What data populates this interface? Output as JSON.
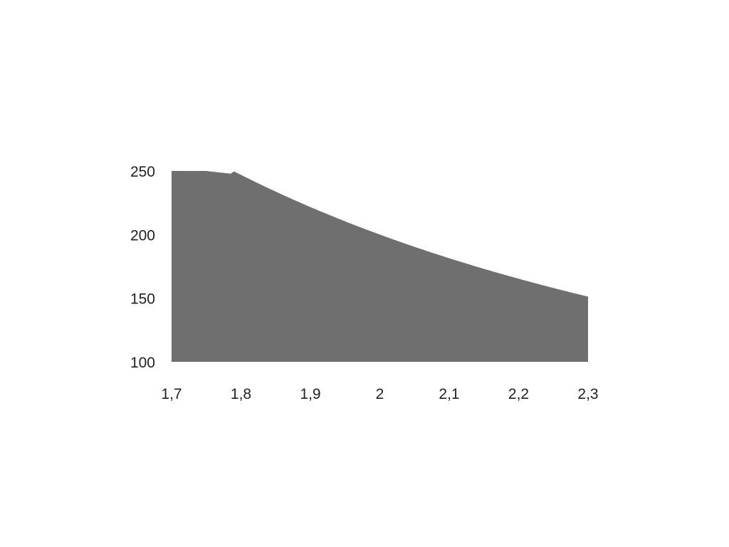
{
  "chart_data": {
    "type": "area",
    "title": "",
    "xlabel": "",
    "ylabel": "",
    "x": [
      1.7,
      1.75,
      1.8,
      1.85,
      1.9,
      1.95,
      2.0,
      2.05,
      2.1,
      2.15,
      2.2,
      2.25,
      2.3
    ],
    "series": [
      {
        "values": [
          250,
          250,
          246.9,
          233.7,
          221.6,
          210.4,
          200,
          190.4,
          181.4,
          173.1,
          165.3,
          158.0,
          151.2
        ]
      }
    ],
    "baseline": 100,
    "xlim": [
      1.7,
      2.3
    ],
    "ylim": [
      100,
      250
    ],
    "x_ticks": [
      "1,7",
      "1,8",
      "1,9",
      "2",
      "2,1",
      "2,2",
      "2,3"
    ],
    "x_tick_values": [
      1.7,
      1.8,
      1.9,
      2.0,
      2.1,
      2.2,
      2.3
    ],
    "y_ticks": [
      "100",
      "150",
      "200",
      "250"
    ],
    "y_tick_values": [
      100,
      150,
      200,
      250
    ],
    "grid": false,
    "legend": "none",
    "colors": {
      "fill": "#6f6f6f",
      "text": "#222222"
    }
  }
}
